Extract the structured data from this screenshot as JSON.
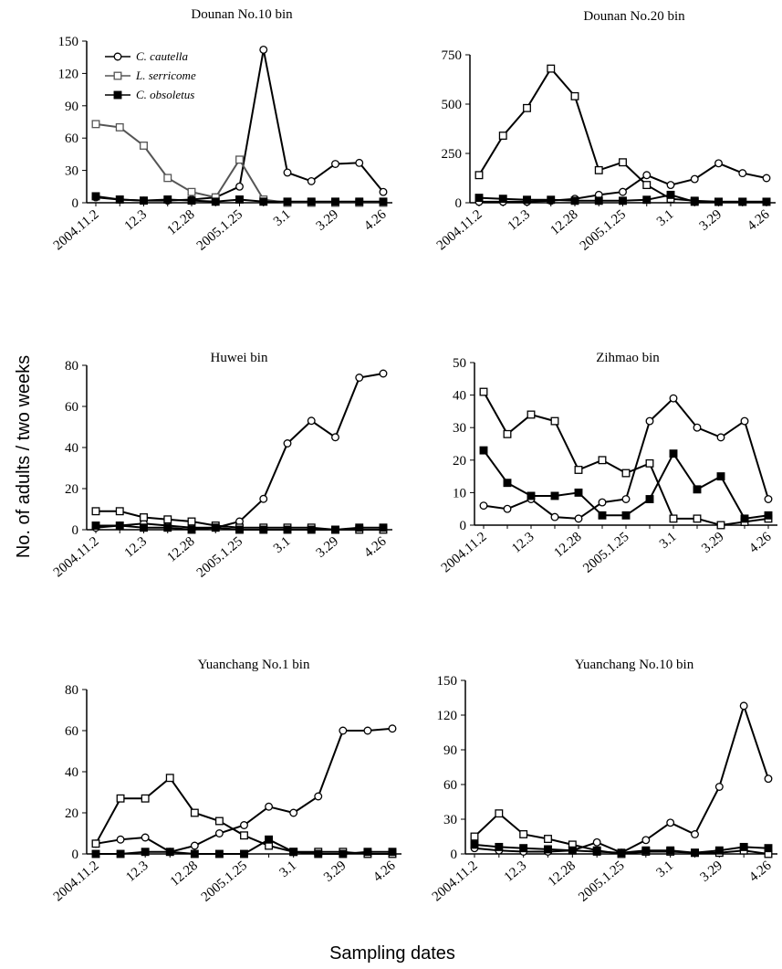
{
  "ylabel": "No. of  adults  / two weeks",
  "xlabel": "Sampling dates",
  "chart_data": [
    {
      "type": "line",
      "title": "Dounan No.10 bin",
      "legend": "upper left",
      "categories": [
        "2004.11.2",
        null,
        "12.3",
        null,
        "12.28",
        null,
        "2005.1.25",
        null,
        "3.1",
        null,
        "3.29",
        null,
        "4.26"
      ],
      "ylim": [
        0,
        150
      ],
      "yticks": [
        0,
        30,
        60,
        90,
        120,
        150
      ],
      "series": [
        {
          "name": "C. cautella",
          "color": "#000000",
          "marker": "circle",
          "values": [
            5,
            3,
            2,
            2,
            3,
            5,
            15,
            142,
            28,
            20,
            36,
            37,
            10
          ]
        },
        {
          "name": "L. serricome",
          "color": "#555555",
          "marker": "square",
          "values": [
            73,
            70,
            53,
            23,
            10,
            5,
            40,
            3,
            0,
            0,
            0,
            0,
            0
          ]
        },
        {
          "name": "C. obsoletus",
          "color": "#000000",
          "marker": "filled-square",
          "values": [
            6,
            3,
            2,
            3,
            2,
            1,
            3,
            1,
            1,
            1,
            1,
            1,
            1
          ]
        }
      ]
    },
    {
      "type": "line",
      "title": "Dounan No.20 bin",
      "categories": [
        "2004.11.2",
        null,
        "12.3",
        null,
        "12.28",
        null,
        "2005.1.25",
        null,
        "3.1",
        null,
        "3.29",
        null,
        "4.26"
      ],
      "ylim": [
        0,
        750
      ],
      "yticks": [
        0,
        250,
        500,
        750
      ],
      "series": [
        {
          "color": "#000000",
          "marker": "circle",
          "values": [
            5,
            5,
            5,
            10,
            20,
            40,
            55,
            140,
            90,
            120,
            200,
            150,
            125
          ]
        },
        {
          "color": "#000000",
          "marker": "square",
          "values": [
            140,
            340,
            480,
            680,
            540,
            165,
            205,
            90,
            20,
            10,
            5,
            5,
            5
          ]
        },
        {
          "color": "#000000",
          "marker": "filled-square",
          "values": [
            25,
            20,
            15,
            15,
            10,
            10,
            10,
            15,
            40,
            5,
            5,
            5,
            5
          ]
        }
      ]
    },
    {
      "type": "line",
      "title": "Huwei bin",
      "categories": [
        "2004.11.2",
        null,
        "12.3",
        null,
        "12.28",
        null,
        "2005.1.25",
        null,
        "3.1",
        null,
        "3.29",
        null,
        "4.26"
      ],
      "ylim": [
        0,
        80
      ],
      "yticks": [
        0,
        20,
        40,
        60,
        80
      ],
      "series": [
        {
          "color": "#000000",
          "marker": "circle",
          "values": [
            1,
            2,
            3,
            2,
            1,
            1,
            4,
            15,
            42,
            53,
            45,
            74,
            76
          ]
        },
        {
          "color": "#000000",
          "marker": "square",
          "values": [
            9,
            9,
            6,
            5,
            4,
            2,
            1,
            1,
            1,
            1,
            0,
            0,
            0
          ]
        },
        {
          "color": "#000000",
          "marker": "filled-square",
          "values": [
            2,
            2,
            1,
            1,
            0,
            1,
            0,
            0,
            0,
            0,
            0,
            1,
            1
          ]
        }
      ]
    },
    {
      "type": "line",
      "title": "Zihmao bin",
      "categories": [
        "2004.11.2",
        null,
        "12.3",
        null,
        "12.28",
        null,
        "2005.1.25",
        null,
        "3.1",
        null,
        "3.29",
        null,
        "4.26"
      ],
      "ylim": [
        0,
        50
      ],
      "yticks": [
        0,
        10,
        20,
        30,
        40,
        50
      ],
      "series": [
        {
          "color": "#000000",
          "marker": "circle",
          "values": [
            6,
            5,
            8,
            2.5,
            2,
            7,
            8,
            32,
            39,
            30,
            27,
            32,
            8
          ]
        },
        {
          "color": "#000000",
          "marker": "square",
          "values": [
            41,
            28,
            34,
            32,
            17,
            20,
            16,
            19,
            2,
            2,
            0,
            1,
            2
          ]
        },
        {
          "color": "#000000",
          "marker": "filled-square",
          "values": [
            23,
            13,
            9,
            9,
            10,
            3,
            3,
            8,
            22,
            11,
            15,
            2,
            3
          ]
        }
      ]
    },
    {
      "type": "line",
      "title": "Yuanchang No.1 bin",
      "categories": [
        "2004.11.2",
        null,
        "12.3",
        null,
        "12.28",
        null,
        "2005.1.25",
        null,
        "3.1",
        null,
        "3.29",
        null,
        "4.26"
      ],
      "ylim": [
        0,
        80
      ],
      "yticks": [
        0,
        20,
        40,
        60,
        80
      ],
      "series": [
        {
          "color": "#000000",
          "marker": "circle",
          "values": [
            5,
            7,
            8,
            1,
            4,
            10,
            14,
            23,
            20,
            28,
            60,
            60,
            61
          ]
        },
        {
          "color": "#000000",
          "marker": "square",
          "values": [
            5,
            27,
            27,
            37,
            20,
            16,
            9,
            4,
            1,
            1,
            1,
            0,
            0
          ]
        },
        {
          "color": "#000000",
          "marker": "filled-square",
          "values": [
            0,
            0,
            1,
            1,
            0,
            0,
            0,
            7,
            1,
            0,
            0,
            1,
            1
          ]
        }
      ]
    },
    {
      "type": "line",
      "title": "Yuanchang No.10 bin",
      "categories": [
        "2004.11.2",
        null,
        "12.3",
        null,
        "12.28",
        null,
        "2005.1.25",
        null,
        "3.1",
        null,
        "3.29",
        null,
        "4.26"
      ],
      "ylim": [
        0,
        150
      ],
      "yticks": [
        0,
        30,
        60,
        90,
        120,
        150
      ],
      "series": [
        {
          "color": "#000000",
          "marker": "circle",
          "values": [
            5,
            3,
            2,
            2,
            3,
            10,
            1,
            12,
            27,
            17,
            58,
            128,
            65
          ]
        },
        {
          "color": "#000000",
          "marker": "square",
          "values": [
            15,
            35,
            17,
            13,
            8,
            3,
            0,
            2,
            2,
            1,
            1,
            3,
            0
          ]
        },
        {
          "color": "#000000",
          "marker": "filled-square",
          "values": [
            8,
            6,
            5,
            4,
            3,
            2,
            1,
            3,
            3,
            1,
            3,
            6,
            5
          ]
        }
      ]
    }
  ]
}
